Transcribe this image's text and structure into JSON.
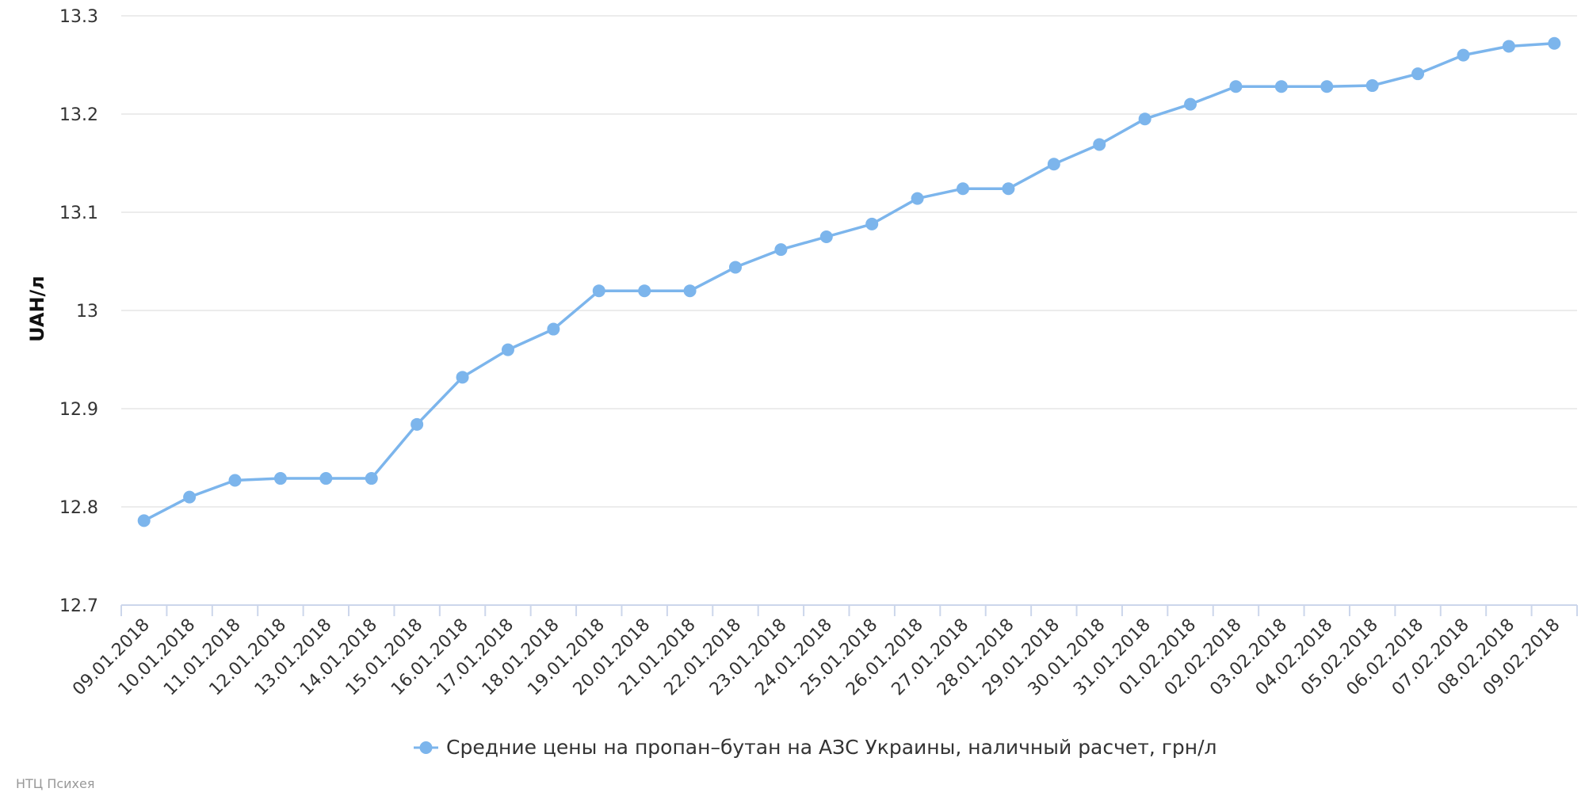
{
  "chart_data": {
    "type": "line",
    "ylabel": "UAH/л",
    "ylim": [
      12.7,
      13.3
    ],
    "yticks": [
      "13.3",
      "13.2",
      "13.1",
      "13",
      "12.9",
      "12.8",
      "12.7"
    ],
    "ytick_values": [
      13.3,
      13.2,
      13.1,
      13.0,
      12.9,
      12.8,
      12.7
    ],
    "grid": true,
    "legend_position": "bottom-center",
    "categories": [
      "09.01.2018",
      "10.01.2018",
      "11.01.2018",
      "12.01.2018",
      "13.01.2018",
      "14.01.2018",
      "15.01.2018",
      "16.01.2018",
      "17.01.2018",
      "18.01.2018",
      "19.01.2018",
      "20.01.2018",
      "21.01.2018",
      "22.01.2018",
      "23.01.2018",
      "24.01.2018",
      "25.01.2018",
      "26.01.2018",
      "27.01.2018",
      "28.01.2018",
      "29.01.2018",
      "30.01.2018",
      "31.01.2018",
      "01.02.2018",
      "02.02.2018",
      "03.02.2018",
      "04.02.2018",
      "05.02.2018",
      "06.02.2018",
      "07.02.2018",
      "08.02.2018",
      "09.02.2018"
    ],
    "series": [
      {
        "name": "Средние цены на пропан–бутан на АЗС Украины, наличный расчет, грн/л",
        "color": "#7cb5ec",
        "values": [
          12.786,
          12.81,
          12.827,
          12.829,
          12.829,
          12.829,
          12.884,
          12.932,
          12.96,
          12.981,
          13.02,
          13.02,
          13.02,
          13.044,
          13.062,
          13.075,
          13.088,
          13.114,
          13.124,
          13.124,
          13.149,
          13.169,
          13.195,
          13.21,
          13.228,
          13.228,
          13.228,
          13.229,
          13.241,
          13.26,
          13.269,
          13.272
        ]
      }
    ]
  },
  "credit": "НТЦ Психея"
}
